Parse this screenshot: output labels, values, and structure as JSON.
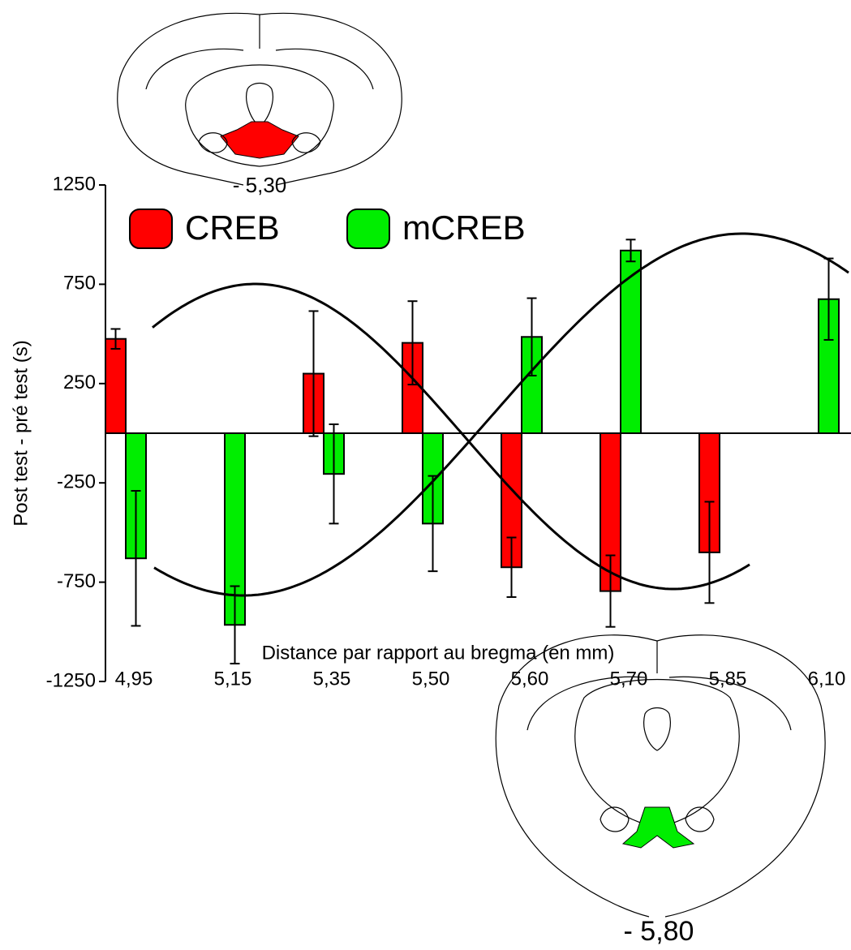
{
  "chart_data": {
    "type": "bar",
    "y_label": "Post test - pré test (s)",
    "x_label": "Distance par rapport au bregma (en mm)",
    "annotations": [
      "- 5,30",
      "- 5,80"
    ],
    "categories": [
      "4,95",
      "5,15",
      "5,35",
      "5,50",
      "5,60",
      "5,70",
      "5,85",
      "6,10"
    ],
    "series": [
      {
        "name": "CREB",
        "color": "#ff0000",
        "values": [
          475,
          null,
          300,
          455,
          -675,
          -795,
          -600,
          null
        ],
        "errors": [
          50,
          null,
          315,
          210,
          150,
          180,
          255,
          null
        ]
      },
      {
        "name": "mCREB",
        "color": "#00ee00",
        "values": [
          -630,
          -965,
          -205,
          -455,
          485,
          920,
          null,
          675
        ],
        "errors": [
          340,
          195,
          250,
          240,
          195,
          55,
          null,
          205
        ]
      }
    ],
    "ylim": [
      -1250,
      1250
    ],
    "yticks": [
      1250,
      750,
      250,
      -250,
      -750,
      -1250
    ]
  }
}
